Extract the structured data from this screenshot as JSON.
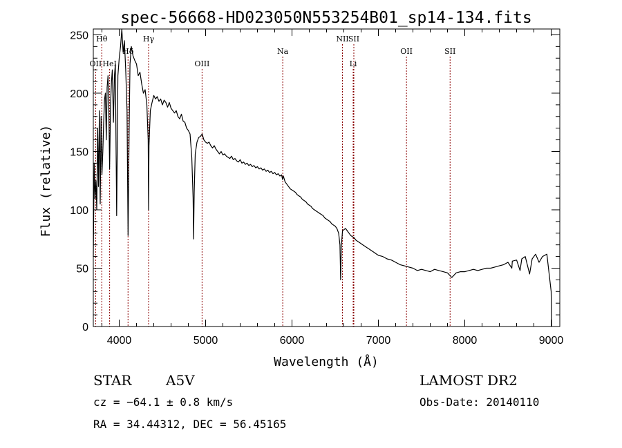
{
  "chart_data": {
    "type": "line",
    "title": "spec-56668-HD023050N553254B01_sp14-134.fits",
    "xlabel": "Wavelength (Å)",
    "ylabel": "Flux (relative)",
    "xlim": [
      3700,
      9100
    ],
    "ylim": [
      0,
      255
    ],
    "xticks": [
      4000,
      5000,
      6000,
      7000,
      8000,
      9000
    ],
    "yticks": [
      0,
      50,
      100,
      150,
      200,
      250
    ],
    "grid": false,
    "line_color": "#000000",
    "marker_color": "#8b0000",
    "series": [
      {
        "values": [
          [
            3700,
            60
          ],
          [
            3710,
            140
          ],
          [
            3720,
            110
          ],
          [
            3730,
            125
          ],
          [
            3740,
            100
          ],
          [
            3750,
            170
          ],
          [
            3760,
            120
          ],
          [
            3770,
            185
          ],
          [
            3780,
            105
          ],
          [
            3790,
            180
          ],
          [
            3800,
            130
          ],
          [
            3810,
            150
          ],
          [
            3820,
            175
          ],
          [
            3830,
            195
          ],
          [
            3840,
            200
          ],
          [
            3850,
            160
          ],
          [
            3860,
            205
          ],
          [
            3870,
            215
          ],
          [
            3880,
            185
          ],
          [
            3889,
            135
          ],
          [
            3900,
            190
          ],
          [
            3910,
            210
          ],
          [
            3920,
            220
          ],
          [
            3933,
            175
          ],
          [
            3945,
            215
          ],
          [
            3955,
            225
          ],
          [
            3970,
            95
          ],
          [
            3985,
            215
          ],
          [
            4000,
            230
          ],
          [
            4015,
            240
          ],
          [
            4030,
            255
          ],
          [
            4045,
            235
          ],
          [
            4060,
            245
          ],
          [
            4075,
            220
          ],
          [
            4090,
            185
          ],
          [
            4102,
            78
          ],
          [
            4115,
            170
          ],
          [
            4125,
            225
          ],
          [
            4140,
            240
          ],
          [
            4160,
            232
          ],
          [
            4180,
            228
          ],
          [
            4200,
            225
          ],
          [
            4220,
            215
          ],
          [
            4240,
            218
          ],
          [
            4260,
            208
          ],
          [
            4280,
            200
          ],
          [
            4300,
            203
          ],
          [
            4320,
            190
          ],
          [
            4335,
            160
          ],
          [
            4340,
            100
          ],
          [
            4345,
            155
          ],
          [
            4360,
            185
          ],
          [
            4380,
            192
          ],
          [
            4400,
            198
          ],
          [
            4420,
            195
          ],
          [
            4440,
            197
          ],
          [
            4460,
            193
          ],
          [
            4480,
            195
          ],
          [
            4500,
            190
          ],
          [
            4520,
            194
          ],
          [
            4540,
            192
          ],
          [
            4560,
            188
          ],
          [
            4580,
            192
          ],
          [
            4600,
            187
          ],
          [
            4620,
            185
          ],
          [
            4640,
            183
          ],
          [
            4660,
            185
          ],
          [
            4680,
            180
          ],
          [
            4700,
            178
          ],
          [
            4720,
            182
          ],
          [
            4740,
            176
          ],
          [
            4760,
            175
          ],
          [
            4780,
            170
          ],
          [
            4800,
            168
          ],
          [
            4820,
            165
          ],
          [
            4840,
            145
          ],
          [
            4855,
            110
          ],
          [
            4861,
            75
          ],
          [
            4868,
            115
          ],
          [
            4880,
            148
          ],
          [
            4900,
            158
          ],
          [
            4920,
            162
          ],
          [
            4940,
            163
          ],
          [
            4960,
            165
          ],
          [
            4980,
            160
          ],
          [
            5000,
            158
          ],
          [
            5020,
            157
          ],
          [
            5040,
            158
          ],
          [
            5060,
            155
          ],
          [
            5080,
            153
          ],
          [
            5100,
            155
          ],
          [
            5120,
            152
          ],
          [
            5140,
            150
          ],
          [
            5160,
            148
          ],
          [
            5180,
            150
          ],
          [
            5200,
            147
          ],
          [
            5220,
            148
          ],
          [
            5240,
            146
          ],
          [
            5260,
            145
          ],
          [
            5280,
            144
          ],
          [
            5300,
            146
          ],
          [
            5320,
            143
          ],
          [
            5340,
            144
          ],
          [
            5360,
            142
          ],
          [
            5380,
            141
          ],
          [
            5400,
            143
          ],
          [
            5420,
            140
          ],
          [
            5440,
            141
          ],
          [
            5460,
            139
          ],
          [
            5480,
            140
          ],
          [
            5500,
            138
          ],
          [
            5520,
            139
          ],
          [
            5540,
            137
          ],
          [
            5560,
            138
          ],
          [
            5580,
            136
          ],
          [
            5600,
            137
          ],
          [
            5620,
            135
          ],
          [
            5640,
            136
          ],
          [
            5660,
            134
          ],
          [
            5680,
            135
          ],
          [
            5700,
            133
          ],
          [
            5720,
            134
          ],
          [
            5740,
            132
          ],
          [
            5760,
            133
          ],
          [
            5780,
            131
          ],
          [
            5800,
            132
          ],
          [
            5820,
            130
          ],
          [
            5840,
            131
          ],
          [
            5860,
            129
          ],
          [
            5880,
            130
          ],
          [
            5890,
            126
          ],
          [
            5900,
            129
          ],
          [
            5920,
            124
          ],
          [
            5940,
            122
          ],
          [
            5960,
            120
          ],
          [
            5980,
            118
          ],
          [
            6000,
            117
          ],
          [
            6020,
            116
          ],
          [
            6040,
            115
          ],
          [
            6060,
            113
          ],
          [
            6080,
            112
          ],
          [
            6100,
            111
          ],
          [
            6120,
            109
          ],
          [
            6140,
            108
          ],
          [
            6160,
            107
          ],
          [
            6180,
            105
          ],
          [
            6200,
            104
          ],
          [
            6220,
            103
          ],
          [
            6240,
            101
          ],
          [
            6260,
            100
          ],
          [
            6280,
            99
          ],
          [
            6300,
            98
          ],
          [
            6320,
            97
          ],
          [
            6340,
            96
          ],
          [
            6360,
            95
          ],
          [
            6380,
            93
          ],
          [
            6400,
            92
          ],
          [
            6420,
            91
          ],
          [
            6440,
            90
          ],
          [
            6460,
            88
          ],
          [
            6480,
            87
          ],
          [
            6500,
            86
          ],
          [
            6520,
            84
          ],
          [
            6540,
            80
          ],
          [
            6555,
            70
          ],
          [
            6563,
            40
          ],
          [
            6570,
            68
          ],
          [
            6585,
            82
          ],
          [
            6600,
            83
          ],
          [
            6620,
            84
          ],
          [
            6640,
            82
          ],
          [
            6660,
            80
          ],
          [
            6680,
            78
          ],
          [
            6700,
            77
          ],
          [
            6720,
            76
          ],
          [
            6740,
            74
          ],
          [
            6760,
            73
          ],
          [
            6780,
            72
          ],
          [
            6800,
            71
          ],
          [
            6820,
            70
          ],
          [
            6840,
            69
          ],
          [
            6860,
            68
          ],
          [
            6880,
            67
          ],
          [
            6900,
            66
          ],
          [
            6920,
            65
          ],
          [
            6940,
            64
          ],
          [
            6960,
            63
          ],
          [
            6980,
            62
          ],
          [
            7000,
            61
          ],
          [
            7050,
            60
          ],
          [
            7100,
            58
          ],
          [
            7150,
            57
          ],
          [
            7200,
            55
          ],
          [
            7250,
            53
          ],
          [
            7300,
            52
          ],
          [
            7350,
            51
          ],
          [
            7400,
            50
          ],
          [
            7450,
            48
          ],
          [
            7500,
            49
          ],
          [
            7550,
            48
          ],
          [
            7600,
            47
          ],
          [
            7650,
            49
          ],
          [
            7700,
            48
          ],
          [
            7750,
            47
          ],
          [
            7800,
            46
          ],
          [
            7850,
            42
          ],
          [
            7900,
            46
          ],
          [
            7950,
            47
          ],
          [
            8000,
            47
          ],
          [
            8050,
            48
          ],
          [
            8100,
            49
          ],
          [
            8150,
            48
          ],
          [
            8200,
            49
          ],
          [
            8250,
            50
          ],
          [
            8300,
            50
          ],
          [
            8350,
            51
          ],
          [
            8400,
            52
          ],
          [
            8450,
            53
          ],
          [
            8500,
            55
          ],
          [
            8545,
            50
          ],
          [
            8550,
            56
          ],
          [
            8600,
            57
          ],
          [
            8640,
            48
          ],
          [
            8660,
            58
          ],
          [
            8700,
            60
          ],
          [
            8750,
            45
          ],
          [
            8780,
            58
          ],
          [
            8820,
            62
          ],
          [
            8860,
            55
          ],
          [
            8900,
            60
          ],
          [
            8950,
            62
          ],
          [
            9000,
            30
          ],
          [
            9005,
            0
          ]
        ]
      }
    ],
    "line_markers": [
      {
        "label": "Hθ",
        "wavelength": 3798,
        "row": 0
      },
      {
        "label": "OII",
        "wavelength": 3727,
        "row": 2
      },
      {
        "label": "HeI",
        "wavelength": 3889,
        "row": 2
      },
      {
        "label": "Hδ",
        "wavelength": 4102,
        "row": 1
      },
      {
        "label": "Hγ",
        "wavelength": 4340,
        "row": 0
      },
      {
        "label": "OIII",
        "wavelength": 4959,
        "row": 2
      },
      {
        "label": "Na",
        "wavelength": 5893,
        "row": 1
      },
      {
        "label": "NII",
        "wavelength": 6584,
        "row": 0
      },
      {
        "label": "SII",
        "wavelength": 6716,
        "row": 0
      },
      {
        "label": "Li",
        "wavelength": 6708,
        "row": 2
      },
      {
        "label": "OII",
        "wavelength": 7325,
        "row": 1
      },
      {
        "label": "SII",
        "wavelength": 7830,
        "row": 1
      }
    ]
  },
  "footer": {
    "object_type": "STAR",
    "spectral_class": "A5V",
    "cz": "cz = −64.1 ± 0.8 km/s",
    "coords": "RA =  34.44312, DEC =  56.45165",
    "survey": "LAMOST DR2",
    "obs_date": "Obs-Date: 20140110"
  }
}
